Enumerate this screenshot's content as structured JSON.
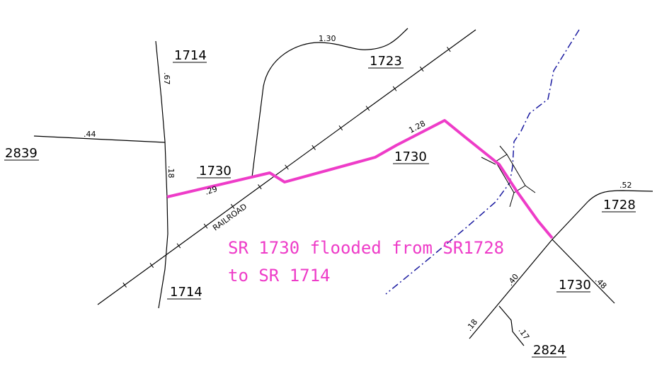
{
  "map": {
    "road_labels": {
      "sr1714_top": "1714",
      "sr1714_bottom": "1714",
      "sr1723": "1723",
      "sr2839": "2839",
      "sr1730_west": "1730",
      "sr1730_mid": "1730",
      "sr1730_east": "1730",
      "sr1728": "1728",
      "sr2824": "2824"
    },
    "mileage_labels": {
      "m_130": "1.30",
      "m_67": ".67",
      "m_44": ".44",
      "m_18_west": ".18",
      "m_29": ".29",
      "m_128": "1.28",
      "m_52": ".52",
      "m_40": ".40",
      "m_48": ".48",
      "m_18_south": ".18",
      "m_17": ".17"
    },
    "railroad_label": "RAILROAD",
    "annotation": {
      "line1": "SR 1730 flooded from SR1728",
      "line2": "to SR 1714"
    },
    "colors": {
      "flooded_road": "#ee3cc8",
      "stream": "#1a1aa0",
      "roads": "#000000"
    }
  }
}
